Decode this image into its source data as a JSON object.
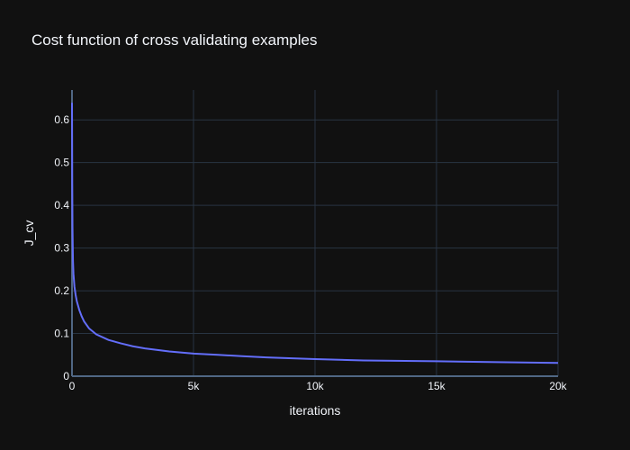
{
  "chart_data": {
    "type": "line",
    "title": "Cost function of cross validating examples",
    "xlabel": "iterations",
    "ylabel": "J_cv",
    "xlim": [
      0,
      20000
    ],
    "ylim": [
      0,
      0.67
    ],
    "grid": true,
    "x_ticks": [
      0,
      5000,
      10000,
      15000,
      20000
    ],
    "x_tick_labels": [
      "0",
      "5k",
      "10k",
      "15k",
      "20k"
    ],
    "y_ticks": [
      0,
      0.1,
      0.2,
      0.3,
      0.4,
      0.5,
      0.6
    ],
    "y_tick_labels": [
      "0",
      "0.1",
      "0.2",
      "0.3",
      "0.4",
      "0.5",
      "0.6"
    ],
    "series": [
      {
        "color": "#636efa",
        "x": [
          0,
          10,
          20,
          40,
          60,
          100,
          150,
          200,
          300,
          400,
          500,
          700,
          1000,
          1500,
          2000,
          2500,
          3000,
          4000,
          5000,
          6000,
          7000,
          8000,
          10000,
          12000,
          15000,
          17500,
          20000
        ],
        "y": [
          0.64,
          0.45,
          0.35,
          0.27,
          0.24,
          0.21,
          0.19,
          0.175,
          0.155,
          0.14,
          0.128,
          0.112,
          0.098,
          0.085,
          0.077,
          0.07,
          0.065,
          0.058,
          0.053,
          0.05,
          0.047,
          0.044,
          0.04,
          0.037,
          0.035,
          0.033,
          0.031
        ]
      }
    ]
  }
}
